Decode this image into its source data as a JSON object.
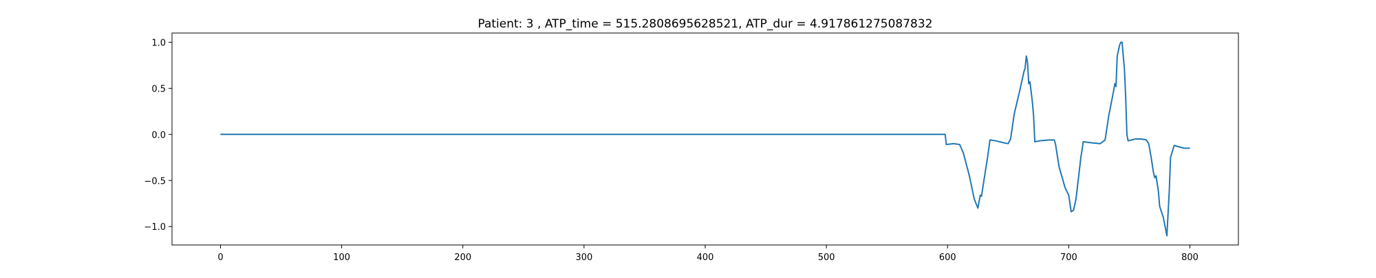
{
  "chart_data": {
    "type": "line",
    "title": "Patient: 3 , ATP_time = 515.2808695628521, ATP_dur = 4.917861275087832",
    "xlabel": "",
    "ylabel": "",
    "xlim": [
      -40,
      840
    ],
    "ylim": [
      -1.2,
      1.1
    ],
    "xticks": [
      0,
      100,
      200,
      300,
      400,
      500,
      600,
      700,
      800
    ],
    "yticks": [
      -1.0,
      -0.5,
      0.0,
      0.5,
      1.0
    ],
    "xtick_labels": [
      "0",
      "100",
      "200",
      "300",
      "400",
      "500",
      "600",
      "700",
      "800"
    ],
    "ytick_labels": [
      "−1.0",
      "−0.5",
      "0.0",
      "0.5",
      "1.0"
    ],
    "grid": false,
    "series": [
      {
        "color": "#1f77b4",
        "points": [
          [
            0,
            0.0
          ],
          [
            598,
            0.0
          ],
          [
            599,
            -0.11
          ],
          [
            605,
            -0.1
          ],
          [
            610,
            -0.11
          ],
          [
            613,
            -0.2
          ],
          [
            618,
            -0.45
          ],
          [
            622,
            -0.7
          ],
          [
            625,
            -0.8
          ],
          [
            627,
            -0.66
          ],
          [
            628,
            -0.67
          ],
          [
            630,
            -0.5
          ],
          [
            633,
            -0.25
          ],
          [
            635,
            -0.06
          ],
          [
            640,
            -0.07
          ],
          [
            646,
            -0.09
          ],
          [
            650,
            -0.1
          ],
          [
            652,
            -0.05
          ],
          [
            655,
            0.22
          ],
          [
            660,
            0.5
          ],
          [
            663,
            0.68
          ],
          [
            664,
            0.72
          ],
          [
            665,
            0.85
          ],
          [
            666,
            0.78
          ],
          [
            667,
            0.55
          ],
          [
            668,
            0.57
          ],
          [
            670,
            0.35
          ],
          [
            671,
            0.2
          ],
          [
            672,
            -0.08
          ],
          [
            676,
            -0.07
          ],
          [
            684,
            -0.06
          ],
          [
            688,
            -0.06
          ],
          [
            689,
            -0.1
          ],
          [
            692,
            -0.35
          ],
          [
            697,
            -0.58
          ],
          [
            700,
            -0.66
          ],
          [
            702,
            -0.84
          ],
          [
            704,
            -0.82
          ],
          [
            706,
            -0.7
          ],
          [
            710,
            -0.25
          ],
          [
            712,
            -0.08
          ],
          [
            718,
            -0.09
          ],
          [
            726,
            -0.1
          ],
          [
            730,
            -0.06
          ],
          [
            733,
            0.2
          ],
          [
            737,
            0.47
          ],
          [
            738,
            0.55
          ],
          [
            739,
            0.52
          ],
          [
            740,
            0.85
          ],
          [
            742,
            0.97
          ],
          [
            743,
            1.0
          ],
          [
            744,
            1.0
          ],
          [
            746,
            0.7
          ],
          [
            747,
            0.4
          ],
          [
            748,
            0.0
          ],
          [
            749,
            -0.07
          ],
          [
            755,
            -0.05
          ],
          [
            760,
            -0.05
          ],
          [
            764,
            -0.06
          ],
          [
            766,
            -0.1
          ],
          [
            768,
            -0.25
          ],
          [
            770,
            -0.42
          ],
          [
            771,
            -0.47
          ],
          [
            772,
            -0.45
          ],
          [
            774,
            -0.62
          ],
          [
            775,
            -0.78
          ],
          [
            778,
            -0.9
          ],
          [
            781,
            -1.1
          ],
          [
            783,
            -0.6
          ],
          [
            784,
            -0.25
          ],
          [
            787,
            -0.12
          ],
          [
            795,
            -0.15
          ],
          [
            800,
            -0.15
          ]
        ]
      }
    ]
  }
}
